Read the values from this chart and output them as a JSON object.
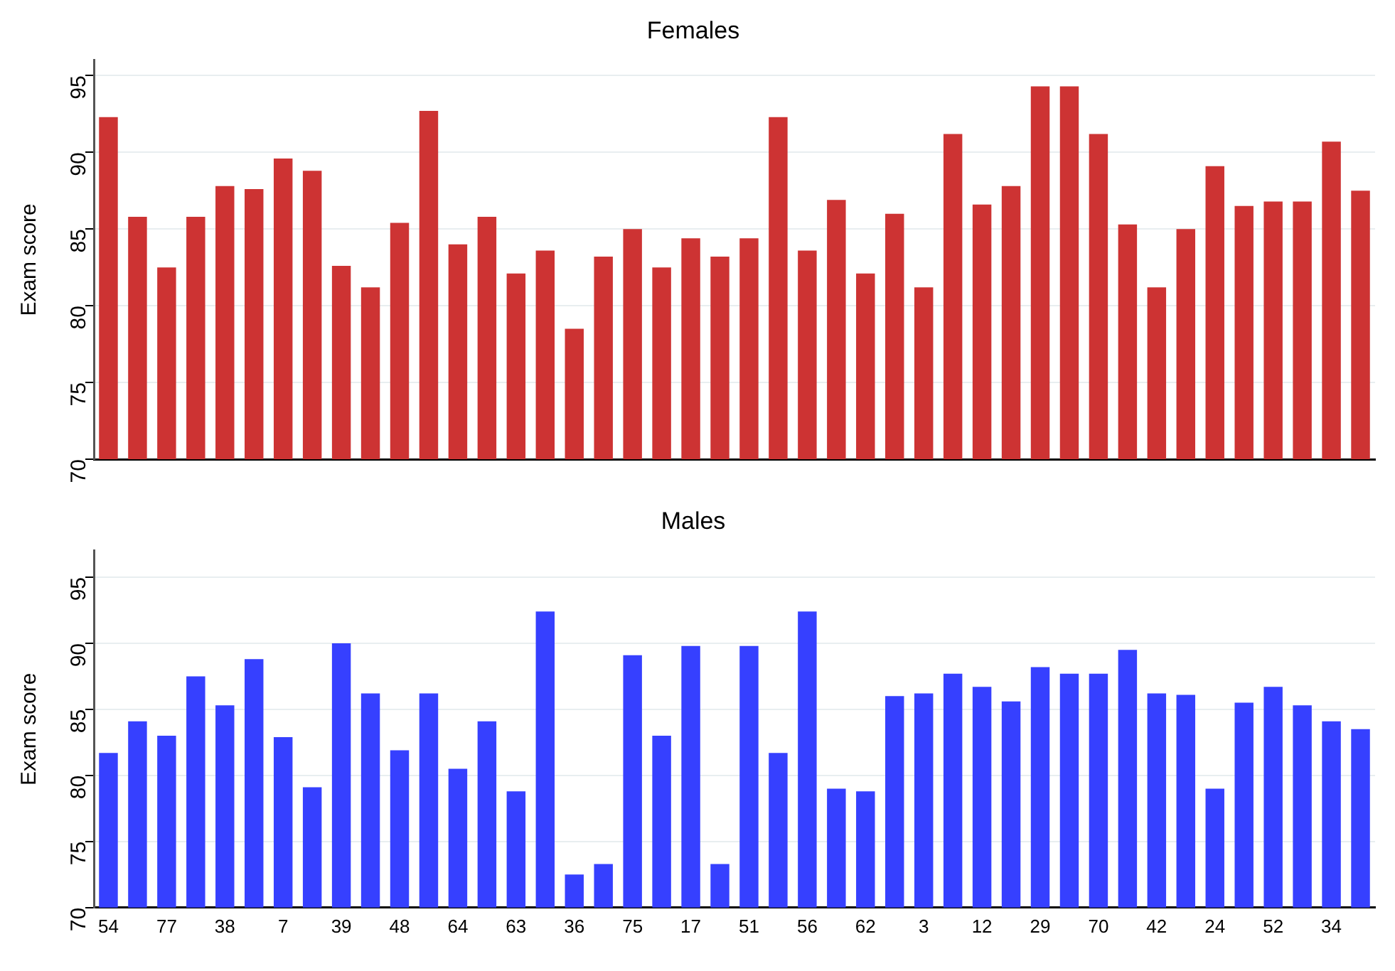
{
  "chart_data": [
    {
      "type": "bar",
      "title": "Females",
      "ylabel": "Exam score",
      "categories": [
        "54",
        null,
        "77",
        null,
        "38",
        null,
        "7",
        null,
        "39",
        null,
        "48",
        null,
        "64",
        null,
        "63",
        null,
        "36",
        null,
        "75",
        null,
        "17",
        null,
        "51",
        null,
        "56",
        null,
        "62",
        null,
        "3",
        null,
        "12",
        null,
        "29",
        null,
        "70",
        null,
        "42",
        null,
        "24",
        null,
        "52",
        null,
        "34",
        null
      ],
      "series": [
        {
          "color": "#cd3333",
          "values": [
            92.3,
            85.8,
            82.5,
            85.8,
            87.8,
            87.6,
            89.6,
            88.8,
            82.6,
            81.2,
            85.4,
            92.7,
            84.0,
            85.8,
            82.1,
            83.6,
            78.5,
            83.2,
            85.0,
            82.5,
            84.4,
            83.2,
            84.4,
            92.3,
            83.6,
            86.9,
            82.1,
            86.0,
            81.2,
            91.2,
            86.6,
            87.8,
            94.3,
            94.3,
            91.2,
            85.3,
            81.2,
            85.0,
            89.1,
            86.5,
            86.8,
            86.8,
            90.7,
            87.5
          ]
        }
      ],
      "ylim": [
        70,
        96
      ],
      "yticks": [
        70,
        75,
        80,
        85,
        90,
        95
      ],
      "grid": "y",
      "tick_labels": "y"
    },
    {
      "type": "bar",
      "title": "Males",
      "ylabel": "Exam score",
      "categories": [
        "54",
        null,
        "77",
        null,
        "38",
        null,
        "7",
        null,
        "39",
        null,
        "48",
        null,
        "64",
        null,
        "63",
        null,
        "36",
        null,
        "75",
        null,
        "17",
        null,
        "51",
        null,
        "56",
        null,
        "62",
        null,
        "3",
        null,
        "12",
        null,
        "29",
        null,
        "70",
        null,
        "42",
        null,
        "24",
        null,
        "52",
        null,
        "34",
        null
      ],
      "series": [
        {
          "color": "#3640ff",
          "values": [
            81.7,
            84.1,
            83.0,
            87.5,
            85.3,
            88.8,
            82.9,
            79.1,
            90.0,
            86.2,
            81.9,
            86.2,
            80.5,
            84.1,
            78.8,
            92.4,
            72.5,
            73.3,
            89.1,
            83.0,
            89.8,
            73.3,
            89.8,
            81.7,
            92.4,
            79.0,
            78.8,
            86.0,
            86.2,
            87.7,
            86.7,
            85.6,
            88.2,
            87.7,
            87.7,
            89.5,
            86.2,
            86.1,
            79.0,
            85.5,
            86.7,
            85.3,
            84.1,
            83.5
          ]
        }
      ],
      "ylim": [
        70,
        97
      ],
      "yticks": [
        70,
        75,
        80,
        85,
        90,
        95
      ],
      "grid": "y"
    }
  ]
}
